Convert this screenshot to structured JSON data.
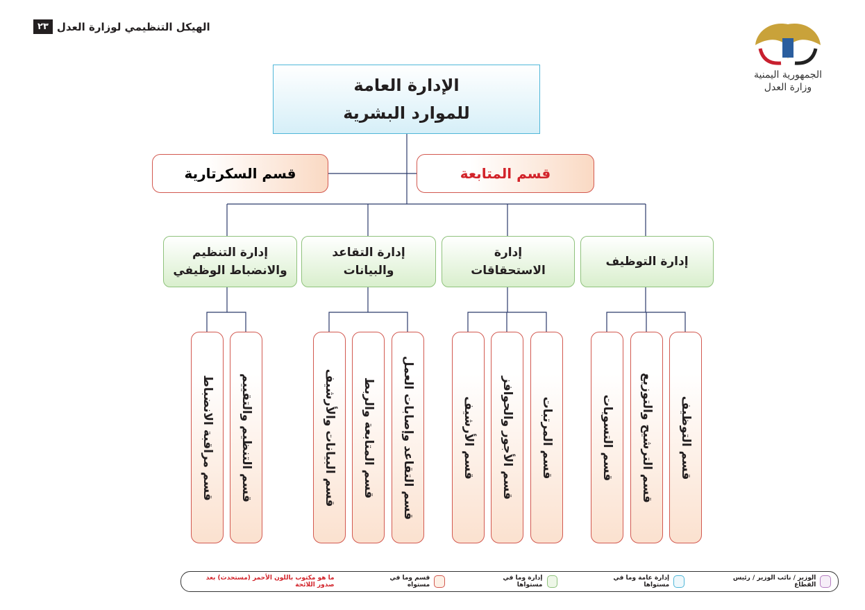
{
  "header": {
    "title": "الهيكل التنظيمي لوزارة العدل",
    "page_number": "٢٣"
  },
  "logo": {
    "line1": "الجمهورية اليمنية",
    "line2": "وزارة العدل"
  },
  "top": {
    "line1": "الإدارة العامة",
    "line2": "للموارد البشرية"
  },
  "sections": {
    "secretariat": "قسم السكرتارية",
    "followup": "قسم المتابعة"
  },
  "departments": [
    {
      "l1": "إدارة التوظيف",
      "l2": "",
      "units": [
        "قسم التوظيف",
        "قسم الترشيح والتوزيع",
        "قسم التسويات"
      ]
    },
    {
      "l1": "إدارة",
      "l2": "الاستحقاقات",
      "units": [
        "قسم المرتبات",
        "قسم الأجور والحوافز",
        "قسم الأرشيف"
      ]
    },
    {
      "l1": "إدارة التقاعد",
      "l2": "والبيانات",
      "units": [
        "قسم التقاعد وإصابات العمل",
        "قسم المتابعة والربط",
        "قسم البيانات والأرشيف"
      ]
    },
    {
      "l1": "إدارة التنظيم",
      "l2": "والانضباط الوظيفي",
      "units": [
        "قسم التنظيم والتقييم",
        "قسم مراقبة الانضباط"
      ]
    }
  ],
  "legend": {
    "minister": "الوزير / نائب الوزير / رئيس القطاع",
    "general": "إدارة عامة وما في مستواها",
    "admin": "إدارة وما في مستواها",
    "section": "قسم وما في مستواه",
    "note": "ما هو مكتوب باللون الأحمر (مستحدث) بعد صدور اللائحة"
  },
  "colors": {
    "lines": "#2b3a6b",
    "new_text": "#d2232a",
    "top_border": "#4fb6d8",
    "admin_border": "#8fc27c",
    "section_border": "#d2584f",
    "minister_border": "#b57cc1"
  }
}
